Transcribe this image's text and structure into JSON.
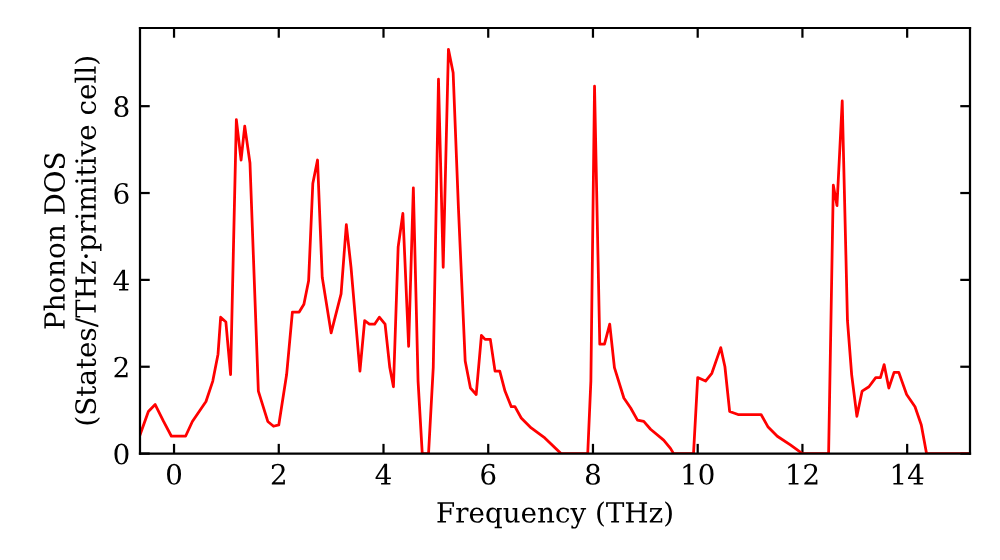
{
  "chart_data": {
    "type": "line",
    "xlabel": "Frequency (THz)",
    "ylabel": "Phonon DOS\n(States/THz·primitive cell)",
    "xlim": [
      -0.65,
      15.2
    ],
    "ylim": [
      0,
      9.8
    ],
    "xticks": [
      0,
      2,
      4,
      6,
      8,
      10,
      12,
      14
    ],
    "yticks": [
      0,
      2,
      4,
      6,
      8
    ],
    "grid": false,
    "series": [
      {
        "color": "#ff0000",
        "x": [
          -0.65,
          -0.49,
          -0.36,
          -0.2,
          -0.05,
          0.22,
          0.35,
          0.61,
          0.74,
          0.84,
          0.89,
          0.99,
          1.08,
          1.19,
          1.28,
          1.35,
          1.45,
          1.61,
          1.79,
          1.9,
          2.0,
          2.15,
          2.26,
          2.39,
          2.48,
          2.57,
          2.65,
          2.74,
          2.83,
          3.0,
          3.19,
          3.29,
          3.38,
          3.55,
          3.64,
          3.73,
          3.83,
          3.92,
          4.03,
          4.12,
          4.19,
          4.28,
          4.37,
          4.48,
          4.57,
          4.66,
          4.74,
          4.86,
          4.95,
          5.05,
          5.14,
          5.24,
          5.33,
          5.43,
          5.56,
          5.66,
          5.77,
          5.87,
          5.94,
          6.04,
          6.13,
          6.22,
          6.32,
          6.44,
          6.51,
          6.63,
          6.82,
          7.08,
          7.39,
          7.9,
          7.96,
          8.03,
          8.13,
          8.22,
          8.32,
          8.41,
          8.59,
          8.72,
          8.85,
          8.97,
          9.1,
          9.35,
          9.48,
          9.54,
          9.92,
          10.0,
          10.15,
          10.27,
          10.44,
          10.52,
          10.61,
          10.77,
          11.21,
          11.34,
          11.52,
          11.77,
          12.0,
          12.5,
          12.59,
          12.66,
          12.76,
          12.86,
          12.94,
          13.04,
          13.14,
          13.27,
          13.4,
          13.49,
          13.56,
          13.65,
          13.75,
          13.84,
          13.99,
          14.15,
          14.27,
          14.37,
          15.2
        ],
        "values": [
          0.43,
          0.97,
          1.13,
          0.74,
          0.4,
          0.4,
          0.74,
          1.2,
          1.67,
          2.29,
          3.14,
          3.03,
          1.82,
          7.69,
          6.76,
          7.54,
          6.69,
          1.44,
          0.74,
          0.63,
          0.66,
          1.82,
          3.26,
          3.26,
          3.44,
          3.98,
          6.22,
          6.76,
          4.06,
          2.78,
          3.68,
          5.27,
          4.29,
          1.9,
          3.06,
          2.98,
          2.98,
          3.14,
          2.98,
          1.98,
          1.54,
          4.76,
          5.53,
          2.47,
          6.12,
          1.67,
          0,
          0,
          1.98,
          8.62,
          4.29,
          9.31,
          8.77,
          5.68,
          2.13,
          1.51,
          1.36,
          2.72,
          2.63,
          2.63,
          1.9,
          1.9,
          1.44,
          1.08,
          1.08,
          0.82,
          0.59,
          0.36,
          0,
          0,
          1.67,
          8.46,
          2.52,
          2.52,
          2.98,
          1.98,
          1.28,
          1.05,
          0.77,
          0.74,
          0.56,
          0.31,
          0.12,
          0,
          0,
          1.75,
          1.67,
          1.85,
          2.44,
          2.0,
          0.97,
          0.9,
          0.9,
          0.62,
          0.4,
          0.2,
          0,
          0,
          6.18,
          5.71,
          8.12,
          3.06,
          1.82,
          0.86,
          1.44,
          1.54,
          1.75,
          1.75,
          2.05,
          1.51,
          1.87,
          1.87,
          1.36,
          1.08,
          0.66,
          0,
          0
        ]
      }
    ]
  }
}
